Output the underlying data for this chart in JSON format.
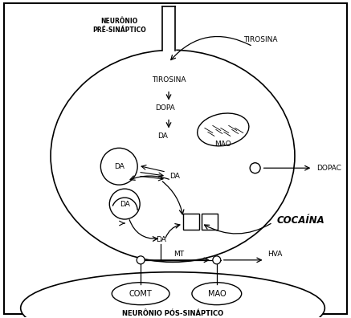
{
  "bg_color": "#ffffff",
  "border_color": "#000000",
  "line_color": "#000000",
  "text_color": "#000000",
  "neuron_pre_label": "NEURÔNIO\nPRÉ-SINÁPTICO",
  "neuron_pos_label": "NEURÔNIO PÓS-SINÁPTICO",
  "tirosina_out": "TIROSINA",
  "tirosina_in": "TIROSINA",
  "dopa_label": "DOPA",
  "mao_label": "MAO",
  "mao2_label": "MAO",
  "dopac_label": "DOPAC",
  "comt_label": "COMT",
  "mt_label": "MT",
  "hva_label": "HVA",
  "cocaina_label": "COCAÍNA",
  "fig_width": 4.37,
  "fig_height": 3.96,
  "dpi": 100
}
